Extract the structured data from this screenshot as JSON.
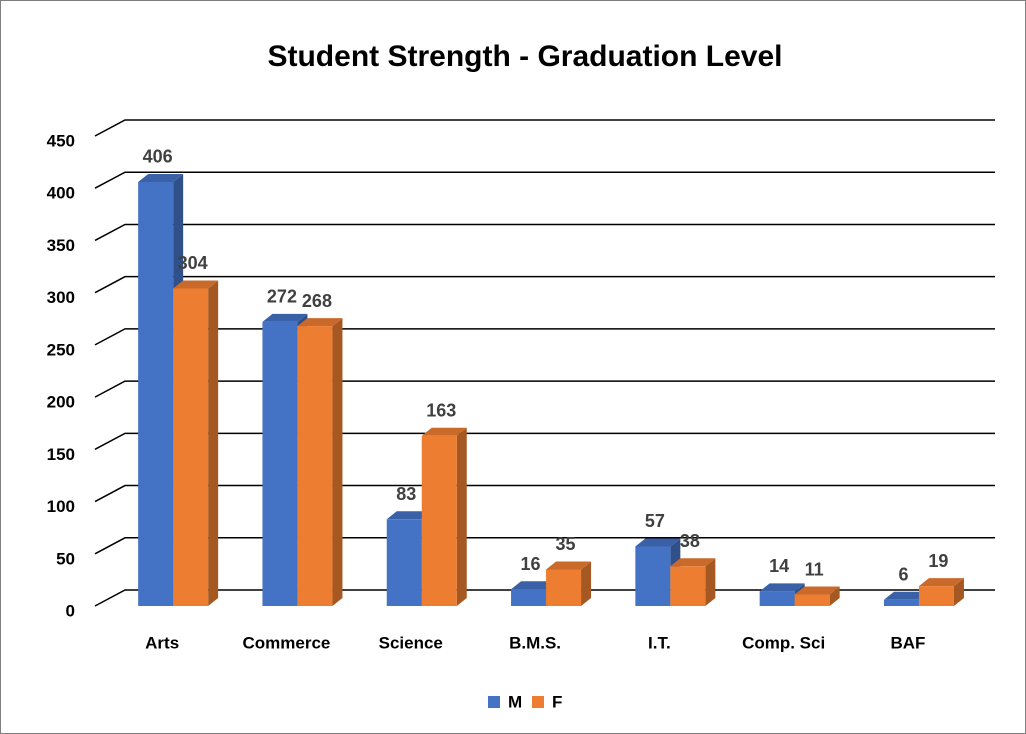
{
  "chart_data": {
    "type": "bar3d",
    "title": "Student Strength - Graduation Level",
    "categories": [
      "Arts",
      "Commerce",
      "Science",
      "B.M.S.",
      "I.T.",
      "Comp. Sci",
      "BAF"
    ],
    "series": [
      {
        "name": "M",
        "color": "#4472c4",
        "values": [
          406,
          272,
          83,
          16,
          57,
          14,
          6
        ]
      },
      {
        "name": "F",
        "color": "#ed7d31",
        "values": [
          304,
          268,
          163,
          35,
          38,
          11,
          19
        ]
      }
    ],
    "ylim": [
      0,
      450
    ],
    "yticks": [
      0,
      50,
      100,
      150,
      200,
      250,
      300,
      350,
      400,
      450
    ],
    "grid": true,
    "legend": "bottom"
  }
}
